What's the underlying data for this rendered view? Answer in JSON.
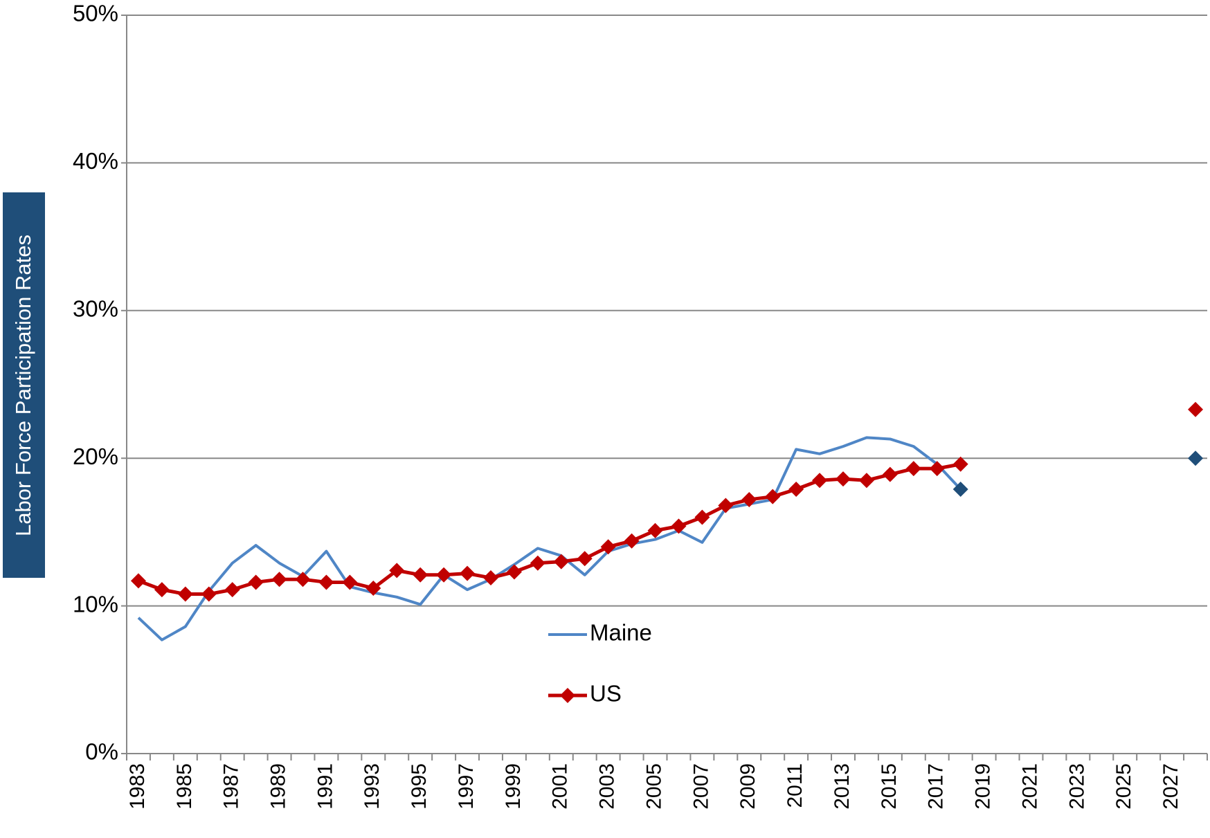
{
  "chart_data": {
    "type": "line",
    "y_label": "Labor Force Participation Rates",
    "categories": [
      "1983",
      null,
      "1985",
      null,
      "1987",
      null,
      "1989",
      null,
      "1991",
      null,
      "1993",
      null,
      "1995",
      null,
      "1997",
      null,
      "1999",
      null,
      "2001",
      null,
      "2003",
      null,
      "2005",
      null,
      "2007",
      null,
      "2009",
      null,
      "2011",
      null,
      "2013",
      null,
      "2015",
      null,
      "2017",
      null,
      "2019",
      null,
      "2021",
      null,
      "2023",
      null,
      "2025",
      null,
      "2027",
      null
    ],
    "series": [
      {
        "name": "Maine",
        "color": "#4f86c6",
        "marker_color": "#1f4e79",
        "point_markers": [
          35,
          45
        ],
        "values": [
          9.2,
          7.7,
          8.6,
          11.0,
          12.9,
          14.1,
          12.9,
          12.0,
          13.7,
          11.3,
          10.9,
          10.6,
          10.1,
          12.1,
          11.1,
          11.8,
          12.8,
          13.9,
          13.4,
          12.1,
          13.7,
          14.2,
          14.5,
          15.1,
          14.3,
          16.6,
          16.9,
          17.2,
          20.6,
          20.3,
          20.8,
          21.4,
          21.3,
          20.8,
          19.6,
          17.9,
          null,
          null,
          null,
          null,
          null,
          null,
          null,
          null,
          null,
          20.0
        ]
      },
      {
        "name": "US",
        "color": "#c00000",
        "marker": "diamond",
        "values": [
          11.7,
          11.1,
          10.8,
          10.8,
          11.1,
          11.6,
          11.8,
          11.8,
          11.6,
          11.6,
          11.2,
          12.4,
          12.1,
          12.1,
          12.2,
          11.9,
          12.3,
          12.9,
          13.0,
          13.2,
          14.0,
          14.4,
          15.1,
          15.4,
          16.0,
          16.8,
          17.2,
          17.4,
          17.9,
          18.5,
          18.6,
          18.5,
          18.9,
          19.3,
          19.3,
          19.6,
          null,
          null,
          null,
          null,
          null,
          null,
          null,
          null,
          null,
          23.3
        ]
      }
    ],
    "ylim": [
      0,
      50
    ],
    "yticks": [
      {
        "value": 0,
        "label": "0%"
      },
      {
        "value": 10,
        "label": "10%"
      },
      {
        "value": 20,
        "label": "20%"
      },
      {
        "value": 30,
        "label": "30%"
      },
      {
        "value": 40,
        "label": "40%"
      },
      {
        "value": 50,
        "label": "50%"
      }
    ],
    "grid": true
  }
}
